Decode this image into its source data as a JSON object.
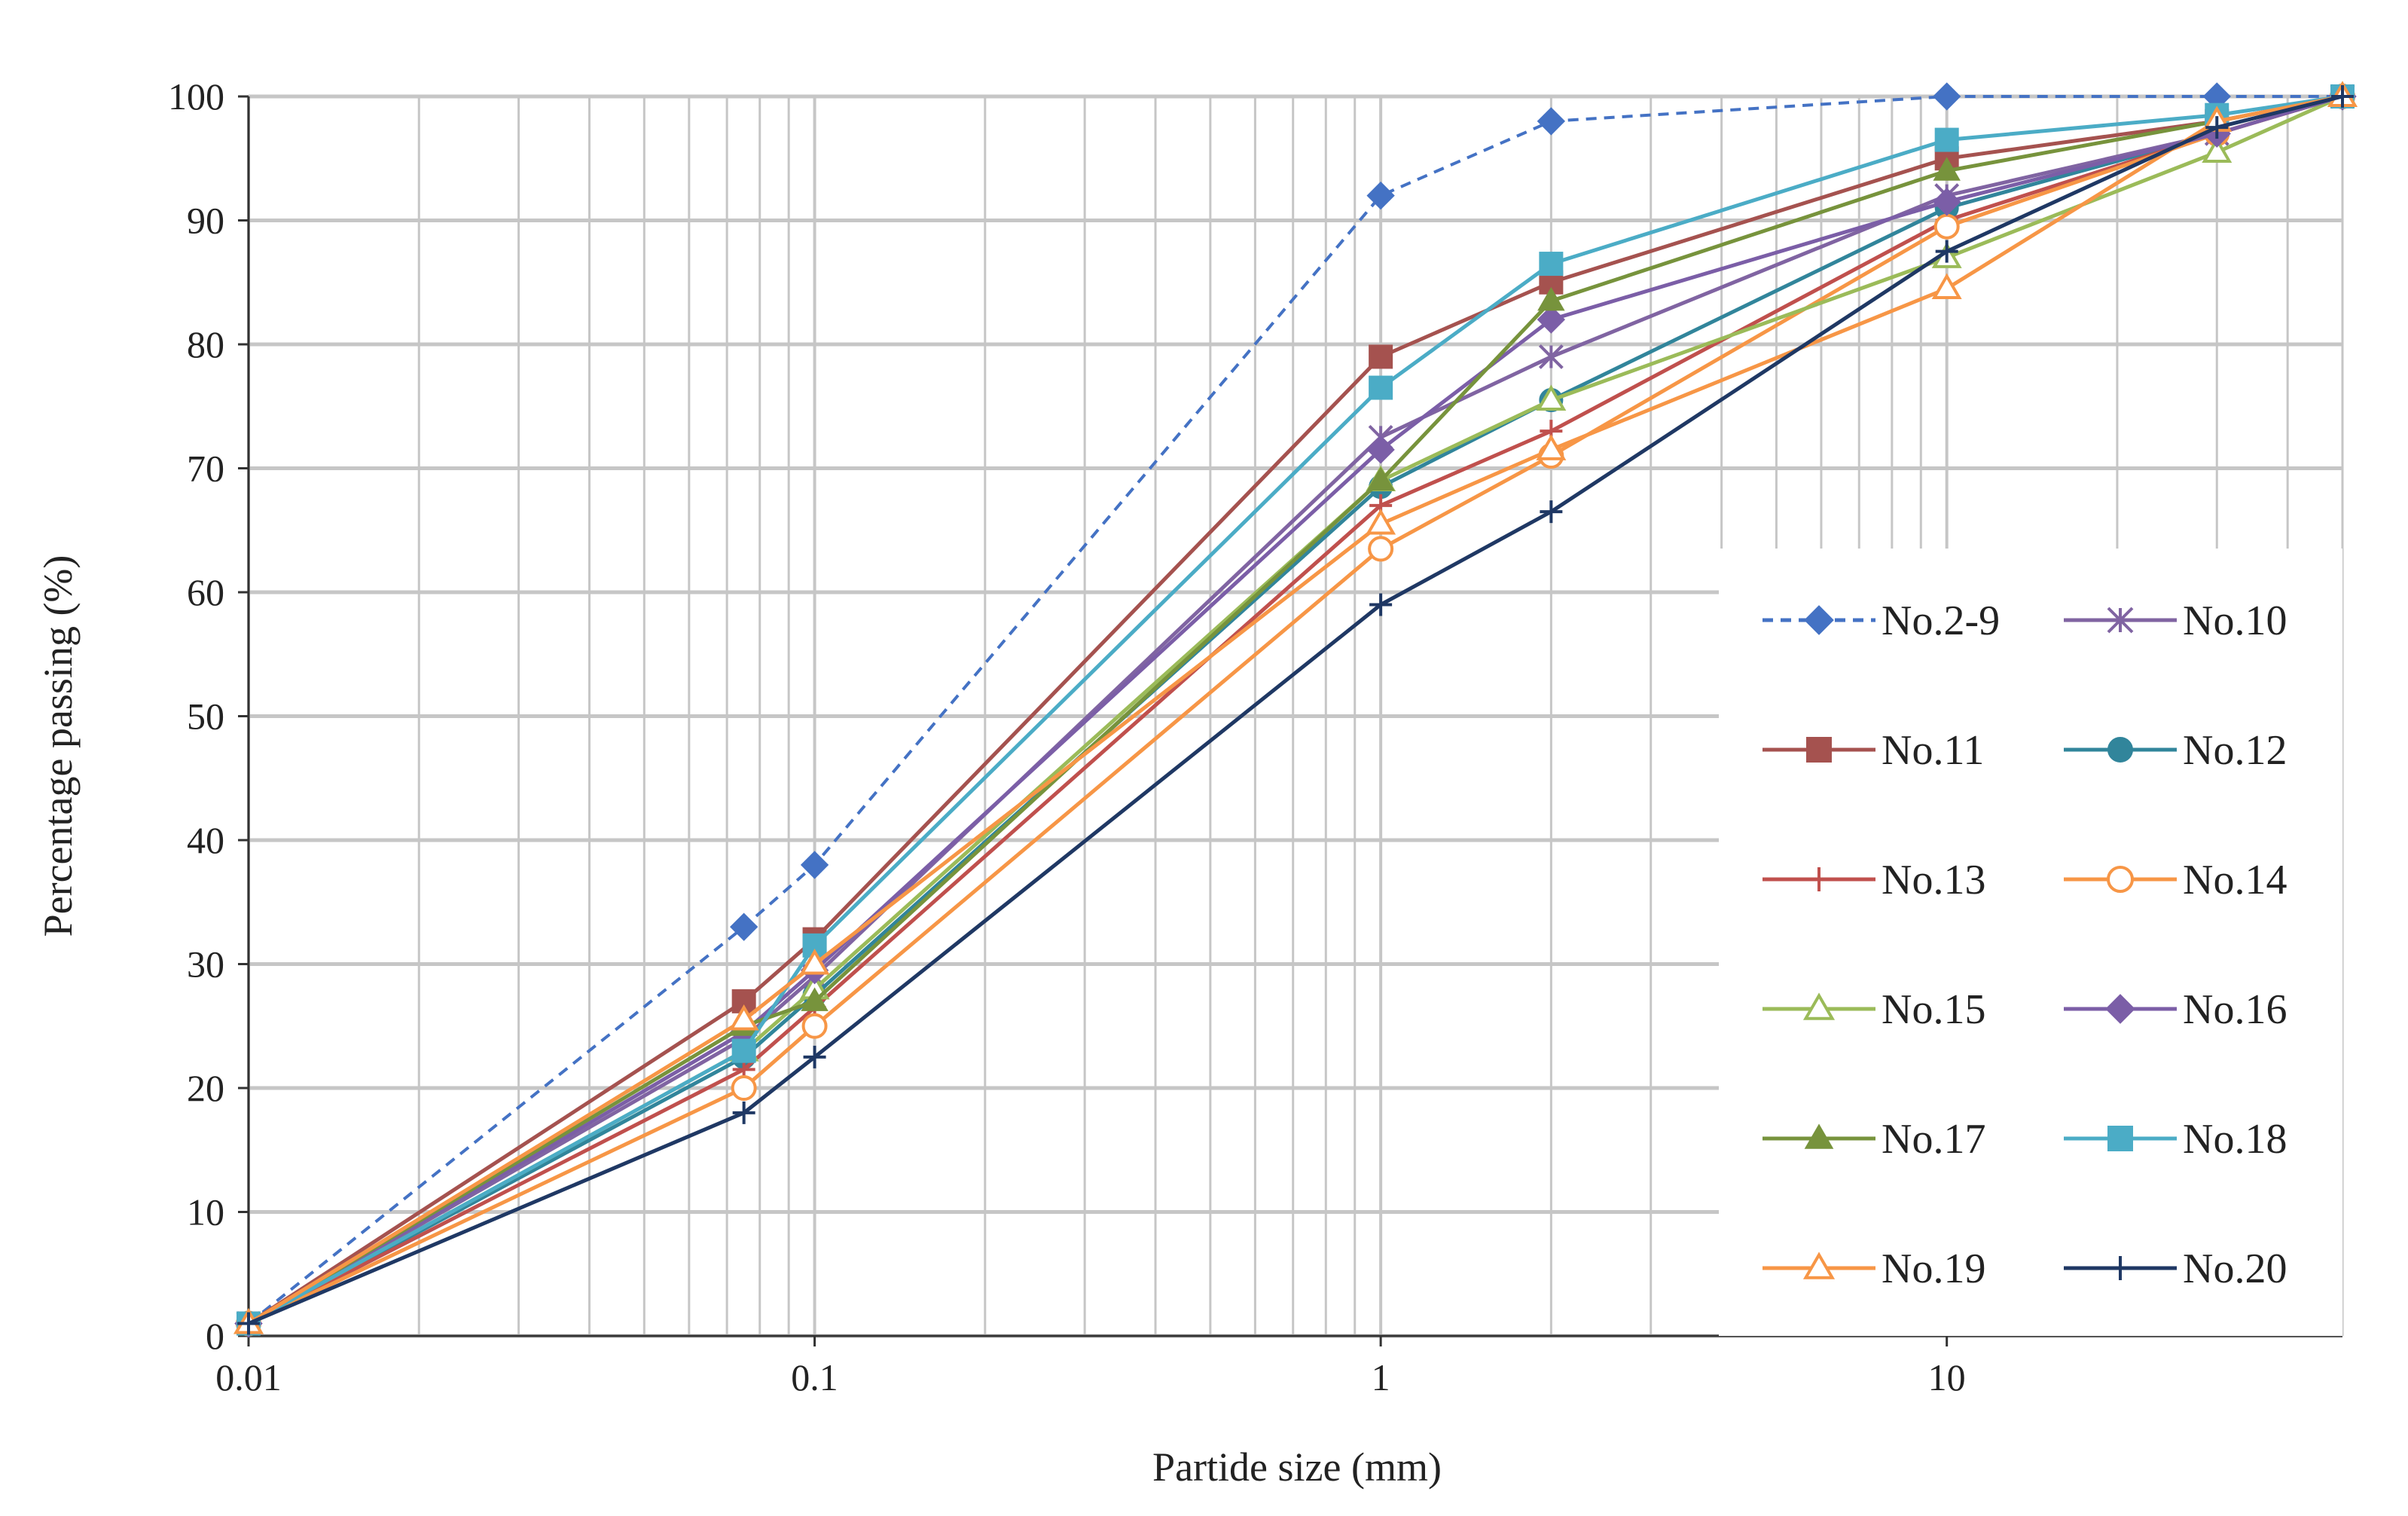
{
  "chart_data": {
    "type": "line",
    "title": "",
    "xlabel": "Partide size (mm)",
    "ylabel": "Percentage passing (%)",
    "xscale": "log",
    "xlim": [
      0.01,
      50
    ],
    "ylim": [
      0,
      100
    ],
    "x_ticks": [
      0.01,
      0.1,
      1,
      10
    ],
    "x_tick_labels": [
      "0.01",
      "0.1",
      "1",
      "10"
    ],
    "y_ticks": [
      0,
      10,
      20,
      30,
      40,
      50,
      60,
      70,
      80,
      90,
      100
    ],
    "y_tick_labels": [
      "0",
      "10",
      "20",
      "30",
      "40",
      "50",
      "60",
      "70",
      "80",
      "90",
      "100"
    ],
    "grid": true,
    "legend_position": "bottom-right",
    "x": [
      0.01,
      0.075,
      0.1,
      1,
      2,
      10,
      30,
      50
    ],
    "series": [
      {
        "name": "No.2-9",
        "color": "#4472c4",
        "dash": true,
        "marker": "diamond",
        "values": [
          1,
          33,
          38,
          92,
          98,
          100,
          100,
          100
        ]
      },
      {
        "name": "No.10",
        "color": "#8064a2",
        "dash": false,
        "marker": "asterisk",
        "values": [
          1,
          24,
          29,
          72.5,
          79,
          92,
          97,
          100
        ]
      },
      {
        "name": "No.11",
        "color": "#a5524f",
        "dash": false,
        "marker": "square",
        "values": [
          1,
          27,
          32,
          79,
          85,
          95,
          98,
          100
        ]
      },
      {
        "name": "No.12",
        "color": "#31859b",
        "dash": false,
        "marker": "circle",
        "values": [
          1,
          22.5,
          27.5,
          68.5,
          75.5,
          91,
          97,
          100
        ]
      },
      {
        "name": "No.13",
        "color": "#c0504d",
        "dash": false,
        "marker": "plus",
        "values": [
          1,
          21.5,
          26.5,
          67,
          73,
          90,
          97,
          100
        ]
      },
      {
        "name": "No.14",
        "color": "#f79646",
        "dash": false,
        "marker": "circle-open",
        "values": [
          1,
          20,
          25,
          63.5,
          71,
          89.5,
          97,
          100
        ]
      },
      {
        "name": "No.15",
        "color": "#9bbb59",
        "dash": false,
        "marker": "triangle-open",
        "values": [
          1,
          23,
          28,
          69,
          75.5,
          87,
          95.5,
          100
        ]
      },
      {
        "name": "No.16",
        "color": "#7b5ea7",
        "dash": false,
        "marker": "diamond",
        "values": [
          1,
          24.5,
          29.5,
          71.5,
          82,
          91.5,
          97,
          100
        ]
      },
      {
        "name": "No.17",
        "color": "#77933c",
        "dash": false,
        "marker": "triangle",
        "values": [
          1,
          25,
          27,
          69,
          83.5,
          94,
          98,
          100
        ]
      },
      {
        "name": "No.18",
        "color": "#4bacc6",
        "dash": false,
        "marker": "square",
        "values": [
          1,
          23,
          31.5,
          76.5,
          86.5,
          96.5,
          98.5,
          100
        ]
      },
      {
        "name": "No.19",
        "color": "#f79646",
        "dash": false,
        "marker": "triangle-open",
        "values": [
          1,
          25.5,
          30,
          65.5,
          71.5,
          84.5,
          98,
          100
        ]
      },
      {
        "name": "No.20",
        "color": "#1f3864",
        "dash": false,
        "marker": "plus",
        "values": [
          1,
          18,
          22.5,
          59,
          66.5,
          87.5,
          97.5,
          100
        ]
      }
    ]
  }
}
